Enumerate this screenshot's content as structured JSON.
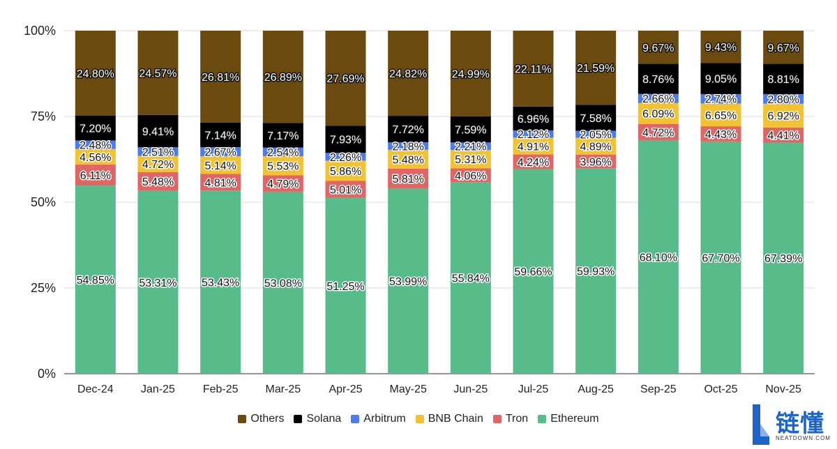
{
  "chart_data": {
    "type": "bar",
    "stacked": true,
    "normalized": true,
    "title": "",
    "xlabel": "",
    "ylabel": "",
    "ylim": [
      0,
      100
    ],
    "yticks": [
      "0%",
      "25%",
      "50%",
      "75%",
      "100%"
    ],
    "categories": [
      "Dec-24",
      "Jan-25",
      "Feb-25",
      "Mar-25",
      "Apr-25",
      "May-25",
      "Jun-25",
      "Jul-25",
      "Aug-25",
      "Sep-25",
      "Oct-25",
      "Nov-25"
    ],
    "series": [
      {
        "name": "Ethereum",
        "color": "#57bb8a",
        "values": [
          54.85,
          53.31,
          53.43,
          53.08,
          51.25,
          53.99,
          55.84,
          59.66,
          59.93,
          68.1,
          67.7,
          67.39
        ]
      },
      {
        "name": "Tron",
        "color": "#e06666",
        "values": [
          6.11,
          5.48,
          4.81,
          4.79,
          5.01,
          5.81,
          4.06,
          4.24,
          3.96,
          4.72,
          4.43,
          4.41
        ]
      },
      {
        "name": "BNB Chain",
        "color": "#f1c232",
        "values": [
          4.56,
          4.72,
          5.14,
          5.53,
          5.86,
          5.48,
          5.31,
          4.91,
          4.89,
          6.09,
          6.65,
          6.92
        ]
      },
      {
        "name": "Arbitrum",
        "color": "#4a7cf0",
        "values": [
          2.48,
          2.51,
          2.67,
          2.54,
          2.26,
          2.18,
          2.21,
          2.12,
          2.05,
          2.66,
          2.74,
          2.8
        ]
      },
      {
        "name": "Solana",
        "color": "#000000",
        "values": [
          7.2,
          9.41,
          7.14,
          7.17,
          7.93,
          7.72,
          7.59,
          6.96,
          7.58,
          8.76,
          9.05,
          8.81
        ]
      },
      {
        "name": "Others",
        "color": "#6b4a10",
        "values": [
          24.8,
          24.57,
          26.81,
          26.89,
          27.69,
          24.82,
          24.99,
          22.11,
          21.59,
          9.67,
          9.43,
          9.67
        ]
      }
    ],
    "labels": [
      [
        "54.85%",
        "53.31%",
        "53.43%",
        "53.08%",
        "51.25%",
        "53.99%",
        "55.84%",
        "59.66%",
        "59.93%",
        "68.10%",
        "67.70%",
        "67.39%"
      ],
      [
        "6.11%",
        "5.48%",
        "4.81%",
        "4.79%",
        "5.01%",
        "5.81%",
        "4.06%",
        "4.24%",
        "3.96%",
        "4.72%",
        "4.43%",
        "4.41%"
      ],
      [
        "4.56%",
        "4.72%",
        "5.14%",
        "5.53%",
        "5.86%",
        "5.48%",
        "5.31%",
        "4.91%",
        "4.89%",
        "6.09%",
        "6.65%",
        "6.92%"
      ],
      [
        "2.48%",
        "2.51%",
        "2.67%",
        "2.54%",
        "2.26%",
        "2.18%",
        "2.21%",
        "2.12%",
        "2.05%",
        "2.66%",
        "2.74%",
        "2.80%"
      ],
      [
        "7.20%",
        "9.41%",
        "7.14%",
        "7.17%",
        "7.93%",
        "7.72%",
        "7.59%",
        "6.96%",
        "7.58%",
        "8.76%",
        "9.05%",
        "8.81%"
      ],
      [
        "24.80%",
        "24.57%",
        "26.81%",
        "26.89%",
        "27.69%",
        "24.82%",
        "24.99%",
        "22.11%",
        "21.59%",
        "9.67%",
        "9.43%",
        "9.67%"
      ]
    ],
    "legend": {
      "placement": "bottom-center",
      "order": [
        "Others",
        "Solana",
        "Arbitrum",
        "BNB Chain",
        "Tron",
        "Ethereum"
      ]
    },
    "grid": true
  },
  "watermark": {
    "text": "链懂",
    "subtext": "NEATDOWN.COM",
    "color": "#1e63c8"
  }
}
